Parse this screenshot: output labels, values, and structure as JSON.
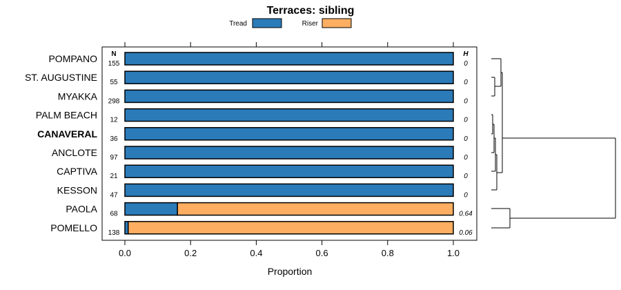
{
  "chart_data": {
    "type": "bar",
    "orientation": "horizontal",
    "stacked": true,
    "title": "Terraces: sibling",
    "xlabel": "Proportion",
    "xlim": [
      0,
      1
    ],
    "xticks": [
      0.0,
      0.2,
      0.4,
      0.6,
      0.8,
      1.0
    ],
    "xtick_labels": [
      "0.0",
      "0.2",
      "0.4",
      "0.6",
      "0.8",
      "1.0"
    ],
    "n_header": "N",
    "h_header": "H",
    "legend_position": "top",
    "categories": [
      "POMPANO",
      "ST. AUGUSTINE",
      "MYAKKA",
      "PALM BEACH",
      "CANAVERAL",
      "ANCLOTE",
      "CAPTIVA",
      "KESSON",
      "PAOLA",
      "POMELLO"
    ],
    "highlighted": [
      "CANAVERAL"
    ],
    "n": [
      "155",
      "55",
      "298",
      "12",
      "36",
      "97",
      "21",
      "47",
      "68",
      "138"
    ],
    "h": [
      "0",
      "0",
      "0",
      "0",
      "0",
      "0",
      "0",
      "0",
      "0.64",
      "0.06"
    ],
    "series": [
      {
        "name": "Tread",
        "color": "#2b7bb9",
        "values": [
          1,
          1,
          1,
          1,
          1,
          1,
          1,
          1,
          0.16,
          0.01
        ]
      },
      {
        "name": "Riser",
        "color": "#fdae61",
        "values": [
          0,
          0,
          0,
          0,
          0,
          0,
          0,
          0,
          0.84,
          0.99
        ]
      }
    ],
    "dendrogram": "right"
  }
}
